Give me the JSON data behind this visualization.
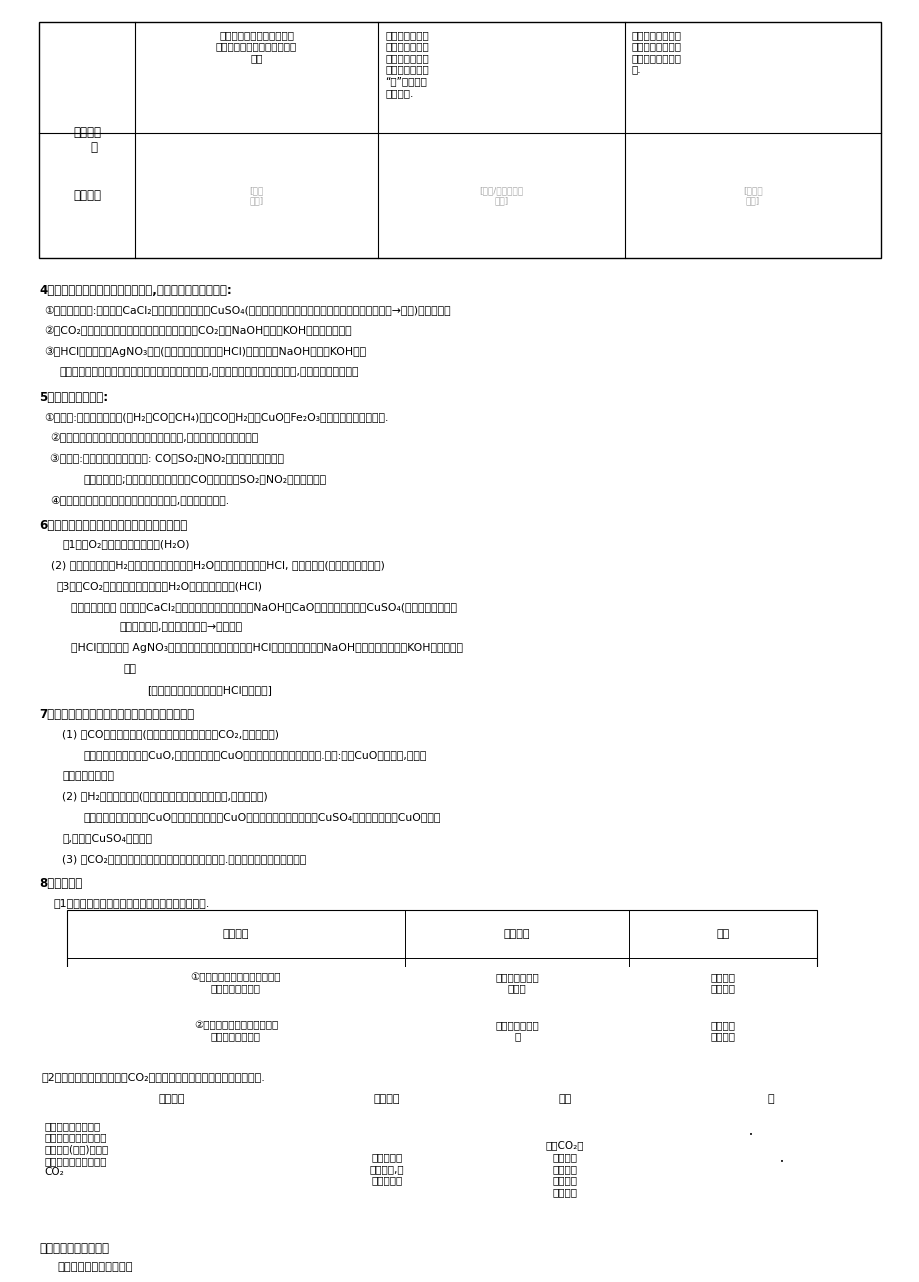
{
  "bg_color": "#ffffff",
  "text_color": "#000000",
  "table1_headers": [
    "实验步骤",
    "实验现象",
    "结论"
  ],
  "table2_headers": [
    "实验步骤",
    "实验现象",
    "结论",
    "图"
  ]
}
